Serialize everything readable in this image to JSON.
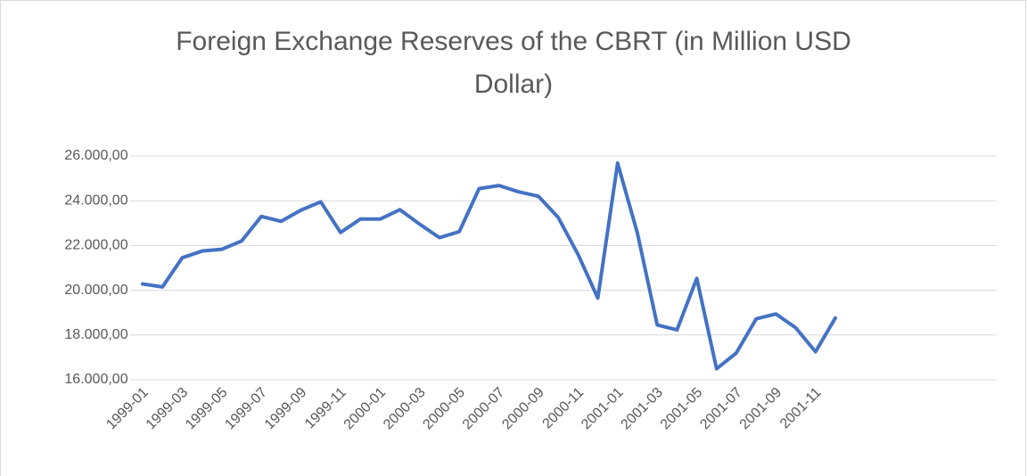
{
  "chart_data": {
    "type": "line",
    "title": [
      "Foreign Exchange Reserves of the CBRT (in Million USD",
      "Dollar)"
    ],
    "categories": [
      "1999-01",
      null,
      "1999-03",
      null,
      "1999-05",
      null,
      "1999-07",
      null,
      "1999-09",
      null,
      "1999-11",
      null,
      "2000-01",
      null,
      "2000-03",
      null,
      "2000-05",
      null,
      "2000-07",
      null,
      "2000-09",
      null,
      "2000-11",
      null,
      "2001-01",
      null,
      "2001-03",
      null,
      "2001-05",
      null,
      "2001-07",
      null,
      "2001-09",
      null,
      "2001-11",
      null
    ],
    "series": [
      {
        "color": "#4472c4",
        "values": [
          20280,
          20150,
          21450,
          21750,
          21830,
          22200,
          23300,
          23080,
          23580,
          23950,
          22580,
          23180,
          23180,
          23600,
          22950,
          22350,
          22620,
          24540,
          24680,
          24400,
          24200,
          23250,
          21600,
          19650,
          25680,
          22550,
          18450,
          18230,
          20530,
          16490,
          17200,
          18720,
          18940,
          18320,
          17250,
          18760
        ]
      }
    ],
    "ylim": [
      16000,
      26000
    ],
    "yticks": [
      {
        "value": 16000,
        "label": "16.000,00"
      },
      {
        "value": 18000,
        "label": "18.000,00"
      },
      {
        "value": 20000,
        "label": "20.000,00"
      },
      {
        "value": 22000,
        "label": "22.000,00"
      },
      {
        "value": 24000,
        "label": "24.000,00"
      },
      {
        "value": 26000,
        "label": "26.000,00"
      }
    ],
    "grid": true
  }
}
